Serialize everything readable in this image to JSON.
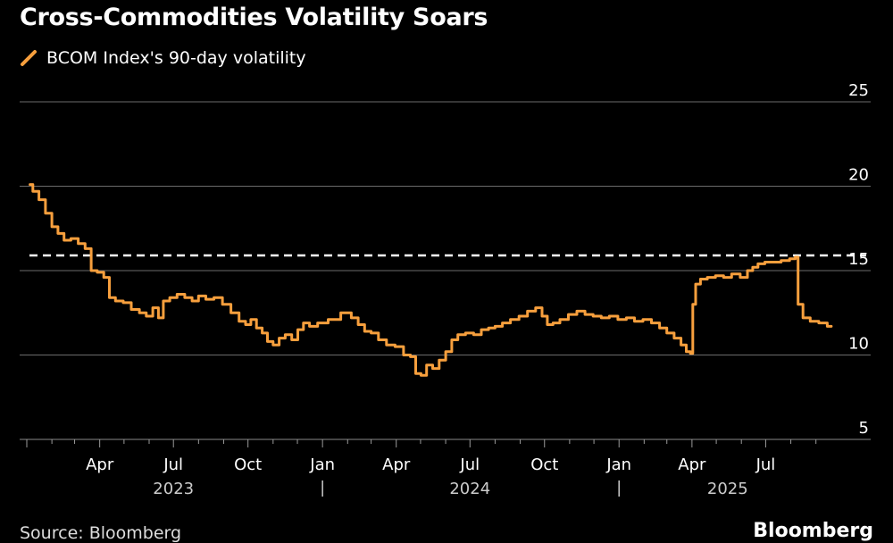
{
  "title": "Cross-Commodities Volatility Soars",
  "legend": {
    "label": "BCOM Index's 90-day volatility",
    "color": "#f79f3d"
  },
  "footer": {
    "source": "Source: Bloomberg",
    "brand": "Bloomberg"
  },
  "chart_data": {
    "type": "line",
    "title": "Cross-Commodities Volatility Soars",
    "xlabel": "",
    "ylabel": "",
    "ylim": [
      5,
      25
    ],
    "y_ticks": [
      5,
      10,
      15,
      20,
      25
    ],
    "y_axis_side": "right",
    "grid": "horizontal",
    "legend_position": "top-left",
    "x_range": [
      "2023-01-01",
      "2025-09-30"
    ],
    "x_tick_labels": [
      {
        "label": "Apr",
        "date": "2023-04-01"
      },
      {
        "label": "Jul",
        "date": "2023-07-01"
      },
      {
        "label": "Oct",
        "date": "2023-10-01"
      },
      {
        "label": "Jan",
        "date": "2024-01-01"
      },
      {
        "label": "Apr",
        "date": "2024-04-01"
      },
      {
        "label": "Jul",
        "date": "2024-07-01"
      },
      {
        "label": "Oct",
        "date": "2024-10-01"
      },
      {
        "label": "Jan",
        "date": "2025-01-01"
      },
      {
        "label": "Apr",
        "date": "2025-04-01"
      },
      {
        "label": "Jul",
        "date": "2025-07-01"
      }
    ],
    "year_labels": [
      {
        "label": "2023",
        "date": "2023-07-01"
      },
      {
        "label": "2024",
        "date": "2024-07-01"
      },
      {
        "label": "2025",
        "date": "2025-05-15"
      }
    ],
    "year_separators": [
      "2024-01-01",
      "2025-01-01"
    ],
    "reference_line": {
      "y": 15.9,
      "style": "dashed",
      "color": "#ffffff"
    },
    "series": [
      {
        "name": "BCOM Index's 90-day volatility",
        "color": "#f79f3d",
        "points": [
          [
            "2023-01-05",
            20.1
          ],
          [
            "2023-01-12",
            19.7
          ],
          [
            "2023-01-20",
            19.2
          ],
          [
            "2023-01-28",
            18.4
          ],
          [
            "2023-02-05",
            17.6
          ],
          [
            "2023-02-12",
            17.2
          ],
          [
            "2023-02-20",
            16.8
          ],
          [
            "2023-03-01",
            16.9
          ],
          [
            "2023-03-10",
            16.6
          ],
          [
            "2023-03-18",
            16.3
          ],
          [
            "2023-03-25",
            15.0
          ],
          [
            "2023-04-02",
            14.9
          ],
          [
            "2023-04-10",
            14.6
          ],
          [
            "2023-04-16",
            13.4
          ],
          [
            "2023-04-25",
            13.2
          ],
          [
            "2023-05-05",
            13.1
          ],
          [
            "2023-05-15",
            12.7
          ],
          [
            "2023-05-25",
            12.5
          ],
          [
            "2023-06-01",
            12.3
          ],
          [
            "2023-06-10",
            12.8
          ],
          [
            "2023-06-15",
            12.2
          ],
          [
            "2023-06-22",
            13.2
          ],
          [
            "2023-07-01",
            13.4
          ],
          [
            "2023-07-10",
            13.6
          ],
          [
            "2023-07-20",
            13.4
          ],
          [
            "2023-07-28",
            13.2
          ],
          [
            "2023-08-05",
            13.5
          ],
          [
            "2023-08-15",
            13.3
          ],
          [
            "2023-08-25",
            13.4
          ],
          [
            "2023-09-05",
            13.0
          ],
          [
            "2023-09-15",
            12.5
          ],
          [
            "2023-09-25",
            12.0
          ],
          [
            "2023-10-01",
            11.8
          ],
          [
            "2023-10-08",
            12.1
          ],
          [
            "2023-10-15",
            11.6
          ],
          [
            "2023-10-22",
            11.3
          ],
          [
            "2023-10-28",
            10.8
          ],
          [
            "2023-11-05",
            10.6
          ],
          [
            "2023-11-12",
            11.0
          ],
          [
            "2023-11-20",
            11.2
          ],
          [
            "2023-11-28",
            10.9
          ],
          [
            "2023-12-05",
            11.5
          ],
          [
            "2023-12-12",
            11.9
          ],
          [
            "2023-12-20",
            11.7
          ],
          [
            "2024-01-01",
            11.9
          ],
          [
            "2024-01-15",
            12.1
          ],
          [
            "2024-02-01",
            12.5
          ],
          [
            "2024-02-10",
            12.2
          ],
          [
            "2024-02-18",
            11.8
          ],
          [
            "2024-02-26",
            11.4
          ],
          [
            "2024-03-05",
            11.3
          ],
          [
            "2024-03-15",
            10.9
          ],
          [
            "2024-03-25",
            10.6
          ],
          [
            "2024-04-05",
            10.5
          ],
          [
            "2024-04-15",
            10.0
          ],
          [
            "2024-04-22",
            9.9
          ],
          [
            "2024-04-28",
            8.9
          ],
          [
            "2024-05-05",
            8.8
          ],
          [
            "2024-05-12",
            9.4
          ],
          [
            "2024-05-20",
            9.2
          ],
          [
            "2024-05-28",
            9.7
          ],
          [
            "2024-06-05",
            10.2
          ],
          [
            "2024-06-12",
            10.9
          ],
          [
            "2024-06-20",
            11.2
          ],
          [
            "2024-07-01",
            11.3
          ],
          [
            "2024-07-10",
            11.2
          ],
          [
            "2024-07-20",
            11.5
          ],
          [
            "2024-07-28",
            11.6
          ],
          [
            "2024-08-05",
            11.7
          ],
          [
            "2024-08-15",
            11.9
          ],
          [
            "2024-08-25",
            12.1
          ],
          [
            "2024-09-05",
            12.3
          ],
          [
            "2024-09-15",
            12.6
          ],
          [
            "2024-09-25",
            12.8
          ],
          [
            "2024-10-01",
            12.3
          ],
          [
            "2024-10-08",
            11.8
          ],
          [
            "2024-10-15",
            11.9
          ],
          [
            "2024-10-25",
            12.1
          ],
          [
            "2024-11-05",
            12.4
          ],
          [
            "2024-11-15",
            12.6
          ],
          [
            "2024-11-25",
            12.4
          ],
          [
            "2024-12-05",
            12.3
          ],
          [
            "2024-12-15",
            12.2
          ],
          [
            "2024-12-25",
            12.3
          ],
          [
            "2025-01-05",
            12.1
          ],
          [
            "2025-01-15",
            12.2
          ],
          [
            "2025-01-25",
            12.0
          ],
          [
            "2025-02-05",
            12.1
          ],
          [
            "2025-02-15",
            11.9
          ],
          [
            "2025-02-25",
            11.6
          ],
          [
            "2025-03-05",
            11.3
          ],
          [
            "2025-03-15",
            11.0
          ],
          [
            "2025-03-22",
            10.6
          ],
          [
            "2025-03-28",
            10.2
          ],
          [
            "2025-04-01",
            10.1
          ],
          [
            "2025-04-03",
            13.0
          ],
          [
            "2025-04-08",
            14.2
          ],
          [
            "2025-04-15",
            14.5
          ],
          [
            "2025-04-25",
            14.6
          ],
          [
            "2025-05-05",
            14.7
          ],
          [
            "2025-05-15",
            14.6
          ],
          [
            "2025-05-25",
            14.8
          ],
          [
            "2025-06-05",
            14.6
          ],
          [
            "2025-06-12",
            15.0
          ],
          [
            "2025-06-18",
            15.2
          ],
          [
            "2025-06-25",
            15.4
          ],
          [
            "2025-07-05",
            15.5
          ],
          [
            "2025-07-15",
            15.5
          ],
          [
            "2025-07-25",
            15.6
          ],
          [
            "2025-08-05",
            15.7
          ],
          [
            "2025-08-08",
            15.8
          ],
          [
            "2025-08-12",
            13.0
          ],
          [
            "2025-08-20",
            12.2
          ],
          [
            "2025-08-30",
            12.0
          ],
          [
            "2025-09-10",
            11.9
          ],
          [
            "2025-09-20",
            11.7
          ]
        ]
      }
    ]
  }
}
